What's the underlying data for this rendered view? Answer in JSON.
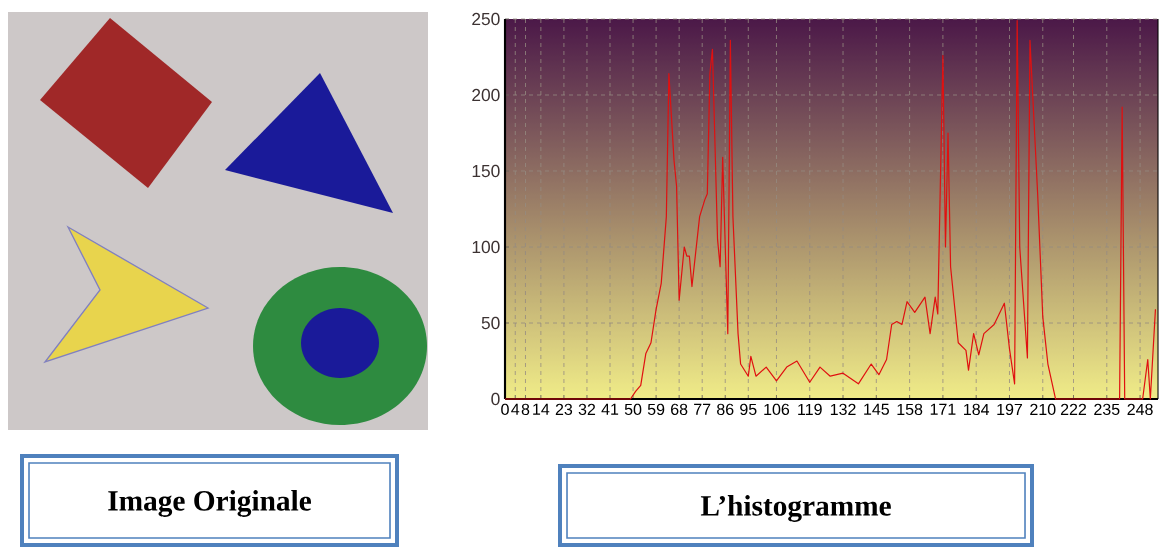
{
  "chart_data": {
    "type": "line",
    "title": "L’histogramme",
    "annotations": [
      "Image Originale"
    ],
    "x": [
      0,
      49,
      51,
      53,
      55,
      57,
      59,
      61,
      63,
      64,
      66,
      67,
      68,
      70,
      71,
      72,
      73,
      76,
      78,
      79,
      80,
      81,
      83,
      84,
      85,
      87,
      88,
      89,
      91,
      92,
      95,
      96,
      98,
      102,
      106,
      110,
      114,
      119,
      123,
      127,
      132,
      138,
      143,
      146,
      149,
      151,
      153,
      155,
      157,
      160,
      164,
      166,
      168,
      169,
      171,
      172,
      173,
      174,
      177,
      180,
      181,
      183,
      185,
      187,
      191,
      195,
      197,
      199,
      200,
      201,
      204,
      205,
      208,
      210,
      212,
      215,
      240,
      241,
      242,
      249,
      251,
      252,
      254
    ],
    "values": [
      0,
      0,
      5,
      9,
      30,
      37,
      59,
      76,
      120,
      214,
      157,
      140,
      65,
      100,
      94,
      94,
      74,
      120,
      131,
      135,
      214,
      230,
      105,
      87,
      159,
      43,
      236,
      120,
      43,
      23,
      15,
      28,
      15,
      21,
      12,
      21,
      25,
      11,
      21,
      15,
      17,
      10,
      23,
      16,
      26,
      49,
      51,
      49,
      64,
      57,
      67,
      43,
      67,
      56,
      226,
      100,
      175,
      87,
      37,
      32,
      19,
      43,
      29,
      43,
      49,
      63,
      33,
      10,
      249,
      100,
      27,
      236,
      135,
      54,
      23,
      0,
      0,
      192,
      0,
      0,
      26,
      0,
      59
    ],
    "color": "#e01010",
    "xlim": [
      0,
      255
    ],
    "xticks": [
      0,
      4,
      8,
      14,
      23,
      32,
      41,
      50,
      59,
      68,
      77,
      86,
      95,
      106,
      119,
      132,
      145,
      158,
      171,
      184,
      197,
      210,
      222,
      235,
      248
    ],
    "ylim": [
      0,
      250
    ],
    "yticks": [
      0,
      50,
      100,
      150,
      200,
      250
    ],
    "grid": true
  }
}
